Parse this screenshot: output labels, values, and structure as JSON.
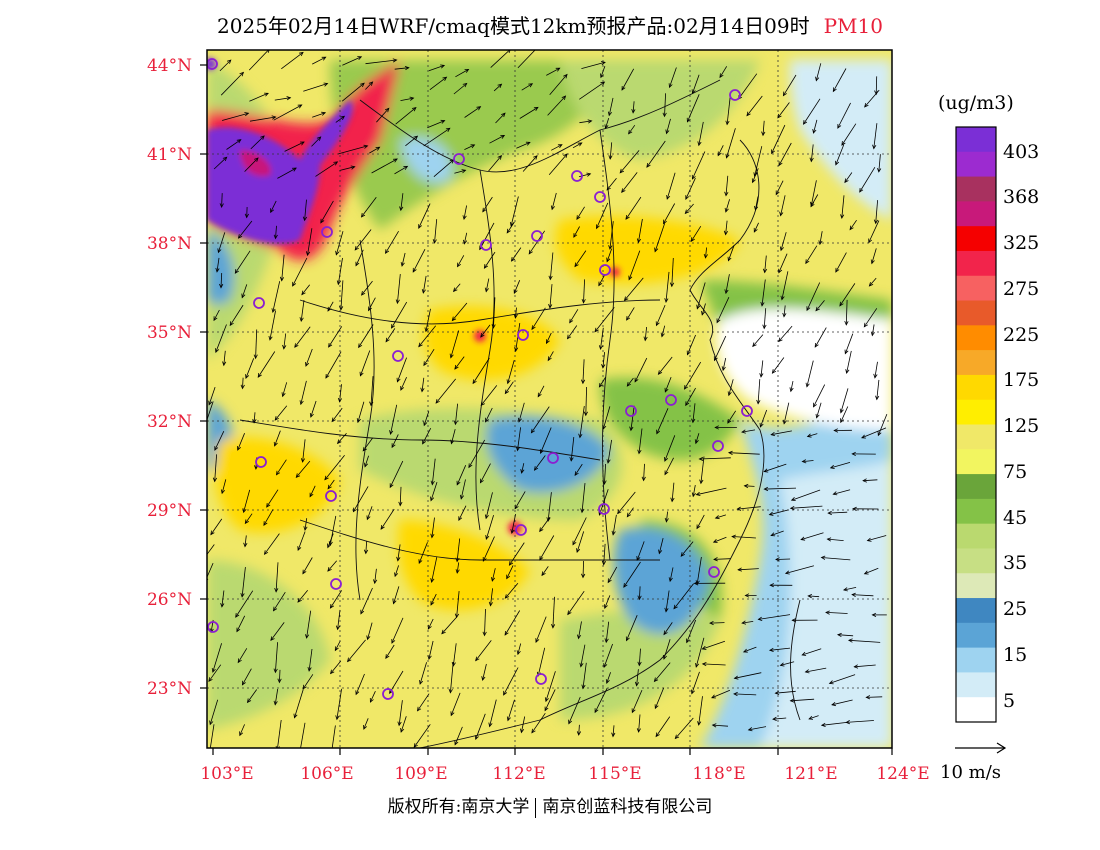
{
  "header": {
    "title": "2025年02月14日WRF/cmaq模式12km预报产品:02月14日09时",
    "pollutant": "PM10"
  },
  "axes": {
    "lat_labels": [
      "44°N",
      "41°N",
      "38°N",
      "35°N",
      "32°N",
      "29°N",
      "26°N",
      "23°N"
    ],
    "lon_labels": [
      "103°E",
      "106°E",
      "109°E",
      "112°E",
      "115°E",
      "118°E",
      "121°E",
      "124°E"
    ]
  },
  "colorbar": {
    "unit": "(ug/m3)",
    "labels": [
      "403",
      "368",
      "325",
      "275",
      "225",
      "175",
      "125",
      "75",
      "45",
      "35",
      "25",
      "15",
      "5"
    ],
    "colors": [
      "#7b2fd6",
      "#9c2bd0",
      "#a8315f",
      "#c8197a",
      "#f50000",
      "#f2244b",
      "#f76161",
      "#e85a2a",
      "#ff8c00",
      "#f7a928",
      "#ffd900",
      "#ffee00",
      "#f0e868",
      "#f2f560",
      "#6aa53a",
      "#84c247",
      "#bad96f",
      "#c7df84",
      "#dde9b7",
      "#3f87c1",
      "#5ba4d6",
      "#9ed3f0",
      "#d3ecf7",
      "#ffffff"
    ]
  },
  "vector_key": {
    "label": "10 m/s"
  },
  "footer": {
    "copyright_left": "版权所有:南京大学",
    "copyright_right": "南京创蓝科技有限公司"
  },
  "map": {
    "land_color": "#f0e868",
    "colors": {
      "high": "#7b2fd6",
      "red": "#f2244b",
      "orange": "#ff8c00",
      "yellow": "#ffd900",
      "green": "#84c247",
      "lightgreen": "#bad96f",
      "blue": "#5ba4d6",
      "lightblue": "#9ed3f0",
      "paleblue": "#d3ecf7"
    }
  }
}
